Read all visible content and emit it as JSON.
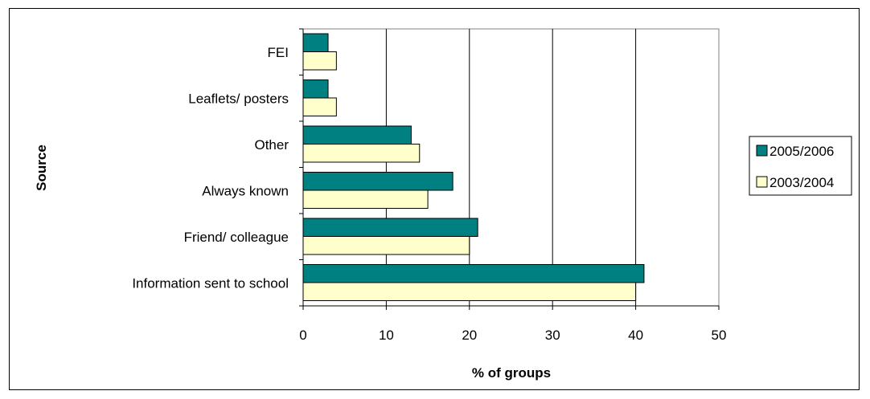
{
  "chart_data": {
    "type": "bar",
    "orientation": "horizontal",
    "categories": [
      "FEI",
      "Leaflets/ posters",
      "Other",
      "Always known",
      "Friend/ colleague",
      "Information sent to school"
    ],
    "series": [
      {
        "name": "2005/2006",
        "values": [
          3,
          3,
          13,
          18,
          21,
          41
        ],
        "color": "#008080"
      },
      {
        "name": "2003/2004",
        "values": [
          4,
          4,
          14,
          15,
          20,
          40
        ],
        "color": "#ffffcc"
      }
    ],
    "xlabel": "% of groups",
    "ylabel": "Source",
    "xlim": [
      0,
      50
    ],
    "xticks": [
      "0",
      "10",
      "20",
      "30",
      "40",
      "50"
    ],
    "grid": "vertical",
    "legend_position": "right",
    "plot_background": "#ffffff",
    "plot_border": "#808080",
    "bar_outline": "#000000"
  }
}
